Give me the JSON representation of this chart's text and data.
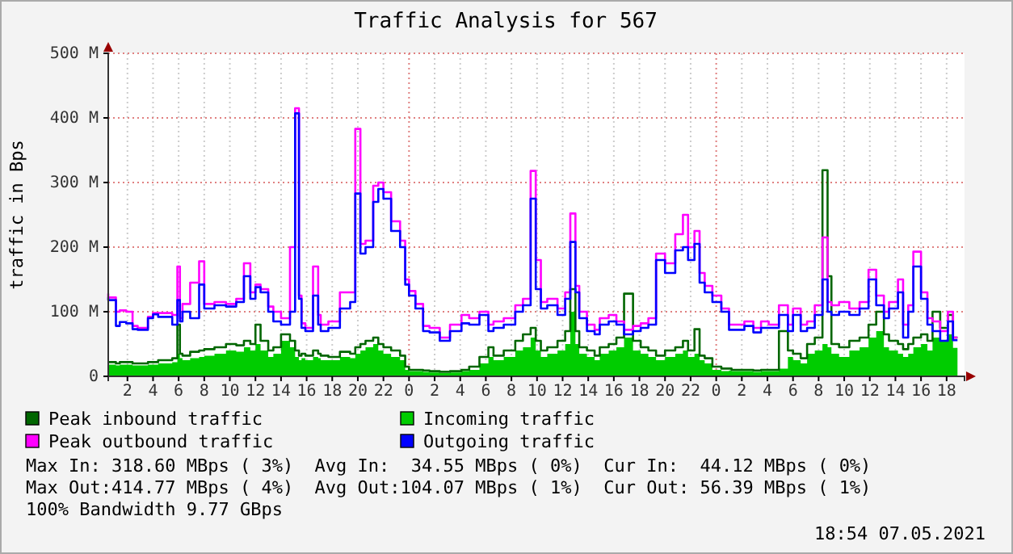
{
  "chart_data": {
    "type": "step",
    "title": "Traffic Analysis for 567",
    "ylabel": "traffic in Bps",
    "x": [
      "2021-05-05T00:30",
      "2021-05-05T01:06",
      "2021-05-05T01:24",
      "2021-05-05T01:54",
      "2021-05-05T02:24",
      "2021-05-05T02:48",
      "2021-05-05T03:36",
      "2021-05-05T04:00",
      "2021-05-05T04:24",
      "2021-05-05T05:30",
      "2021-05-05T05:54",
      "2021-05-05T06:06",
      "2021-05-05T06:18",
      "2021-05-05T06:54",
      "2021-05-05T07:36",
      "2021-05-05T08:00",
      "2021-05-05T08:48",
      "2021-05-05T09:42",
      "2021-05-05T10:30",
      "2021-05-05T11:06",
      "2021-05-05T11:36",
      "2021-05-05T12:00",
      "2021-05-05T12:24",
      "2021-05-05T13:00",
      "2021-05-05T13:24",
      "2021-05-05T14:00",
      "2021-05-05T14:42",
      "2021-05-05T15:06",
      "2021-05-05T15:24",
      "2021-05-05T15:36",
      "2021-05-05T15:54",
      "2021-05-05T16:30",
      "2021-05-05T16:54",
      "2021-05-05T17:06",
      "2021-05-05T17:42",
      "2021-05-05T18:36",
      "2021-05-05T19:24",
      "2021-05-05T19:48",
      "2021-05-05T20:12",
      "2021-05-05T20:36",
      "2021-05-05T21:12",
      "2021-05-05T21:36",
      "2021-05-05T22:00",
      "2021-05-05T22:36",
      "2021-05-05T23:18",
      "2021-05-05T23:42",
      "2021-05-06T00:00",
      "2021-05-06T00:30",
      "2021-05-06T01:06",
      "2021-05-06T01:36",
      "2021-05-06T02:24",
      "2021-05-06T03:12",
      "2021-05-06T04:06",
      "2021-05-06T04:42",
      "2021-05-06T05:30",
      "2021-05-06T06:12",
      "2021-05-06T06:36",
      "2021-05-06T07:24",
      "2021-05-06T08:18",
      "2021-05-06T08:54",
      "2021-05-06T09:30",
      "2021-05-06T09:54",
      "2021-05-06T10:18",
      "2021-05-06T10:48",
      "2021-05-06T11:36",
      "2021-05-06T12:12",
      "2021-05-06T12:36",
      "2021-05-06T13:00",
      "2021-05-06T13:18",
      "2021-05-06T13:54",
      "2021-05-06T14:30",
      "2021-05-06T14:54",
      "2021-05-06T15:36",
      "2021-05-06T16:12",
      "2021-05-06T16:48",
      "2021-05-06T17:30",
      "2021-05-06T18:06",
      "2021-05-06T18:42",
      "2021-05-06T19:18",
      "2021-05-06T20:00",
      "2021-05-06T20:48",
      "2021-05-06T21:24",
      "2021-05-06T21:48",
      "2021-05-06T22:18",
      "2021-05-06T22:42",
      "2021-05-06T23:06",
      "2021-05-06T23:42",
      "2021-05-07T00:24",
      "2021-05-07T01:00",
      "2021-05-07T01:12",
      "2021-05-07T02:12",
      "2021-05-07T02:54",
      "2021-05-07T03:30",
      "2021-05-07T04:06",
      "2021-05-07T04:54",
      "2021-05-07T05:36",
      "2021-05-07T06:00",
      "2021-05-07T06:36",
      "2021-05-07T07:06",
      "2021-05-07T07:42",
      "2021-05-07T08:18",
      "2021-05-07T08:42",
      "2021-05-07T09:00",
      "2021-05-07T09:36",
      "2021-05-07T10:24",
      "2021-05-07T11:12",
      "2021-05-07T11:54",
      "2021-05-07T12:30",
      "2021-05-07T13:06",
      "2021-05-07T13:30",
      "2021-05-07T14:12",
      "2021-05-07T14:36",
      "2021-05-07T15:00",
      "2021-05-07T15:24",
      "2021-05-07T16:00",
      "2021-05-07T16:30",
      "2021-05-07T16:54",
      "2021-05-07T17:30",
      "2021-05-07T18:06",
      "2021-05-07T18:30",
      "2021-05-07T18:51"
    ],
    "series": [
      {
        "name": "Incoming traffic",
        "type": "area",
        "color": "#00cc00",
        "values": [
          18,
          18,
          17,
          18,
          18,
          17,
          17,
          18,
          18,
          20,
          22,
          35,
          28,
          25,
          28,
          30,
          32,
          35,
          40,
          38,
          45,
          40,
          50,
          40,
          30,
          35,
          55,
          45,
          30,
          25,
          28,
          25,
          30,
          28,
          25,
          25,
          30,
          28,
          35,
          40,
          45,
          50,
          40,
          35,
          30,
          25,
          10,
          8,
          8,
          7,
          6,
          5,
          6,
          8,
          10,
          20,
          30,
          25,
          30,
          40,
          45,
          60,
          40,
          30,
          35,
          40,
          50,
          100,
          50,
          35,
          30,
          25,
          35,
          40,
          45,
          60,
          40,
          35,
          30,
          25,
          30,
          35,
          40,
          30,
          35,
          25,
          20,
          10,
          8,
          9,
          8,
          8,
          7,
          8,
          8,
          12,
          30,
          25,
          20,
          35,
          40,
          50,
          45,
          35,
          30,
          40,
          45,
          60,
          70,
          45,
          40,
          35,
          30,
          35,
          45,
          50,
          40,
          60,
          55,
          65,
          44
        ]
      },
      {
        "name": "Peak inbound traffic",
        "color": "#006600",
        "values": [
          22,
          22,
          20,
          22,
          22,
          20,
          20,
          22,
          22,
          25,
          28,
          80,
          35,
          32,
          38,
          40,
          42,
          45,
          50,
          48,
          55,
          50,
          80,
          55,
          40,
          45,
          65,
          55,
          40,
          32,
          35,
          32,
          40,
          35,
          32,
          30,
          38,
          35,
          45,
          50,
          55,
          60,
          50,
          45,
          40,
          32,
          15,
          10,
          10,
          9,
          8,
          7,
          8,
          10,
          15,
          30,
          45,
          32,
          40,
          55,
          65,
          75,
          55,
          40,
          45,
          55,
          70,
          135,
          70,
          45,
          40,
          32,
          45,
          50,
          60,
          128,
          55,
          45,
          40,
          32,
          40,
          45,
          55,
          40,
          73,
          32,
          28,
          15,
          12,
          12,
          10,
          10,
          9,
          10,
          10,
          70,
          40,
          35,
          28,
          50,
          60,
          319,
          155,
          50,
          45,
          55,
          60,
          80,
          100,
          65,
          55,
          50,
          42,
          50,
          60,
          65,
          55,
          100,
          75,
          95,
          60
        ]
      },
      {
        "name": "Peak outbound traffic",
        "color": "#ff00ff",
        "values": [
          128,
          122,
          100,
          102,
          100,
          78,
          75,
          92,
          98,
          98,
          95,
          170,
          90,
          112,
          145,
          178,
          112,
          115,
          112,
          120,
          175,
          130,
          142,
          135,
          108,
          100,
          90,
          200,
          415,
          125,
          82,
          75,
          170,
          95,
          80,
          85,
          130,
          130,
          383,
          205,
          210,
          295,
          300,
          285,
          240,
          210,
          150,
          132,
          112,
          78,
          75,
          60,
          80,
          95,
          90,
          100,
          80,
          85,
          90,
          110,
          120,
          318,
          180,
          115,
          120,
          105,
          130,
          252,
          140,
          100,
          80,
          72,
          90,
          95,
          85,
          72,
          78,
          82,
          90,
          190,
          175,
          220,
          250,
          200,
          225,
          160,
          140,
          125,
          105,
          80,
          80,
          85,
          75,
          85,
          80,
          110,
          80,
          105,
          80,
          85,
          110,
          215,
          115,
          110,
          115,
          105,
          115,
          165,
          125,
          100,
          115,
          150,
          80,
          110,
          193,
          130,
          90,
          85,
          70,
          100,
          60
        ]
      },
      {
        "name": "Outgoing traffic",
        "color": "#0000ff",
        "values": [
          122,
          118,
          78,
          84,
          82,
          73,
          72,
          90,
          96,
          92,
          80,
          118,
          85,
          100,
          90,
          142,
          105,
          110,
          108,
          115,
          155,
          120,
          138,
          130,
          100,
          85,
          80,
          100,
          407,
          120,
          75,
          70,
          125,
          80,
          70,
          75,
          105,
          115,
          283,
          190,
          200,
          270,
          290,
          275,
          225,
          200,
          142,
          125,
          105,
          70,
          68,
          55,
          70,
          82,
          80,
          95,
          70,
          75,
          80,
          100,
          110,
          275,
          135,
          105,
          110,
          95,
          120,
          208,
          130,
          90,
          70,
          65,
          80,
          85,
          80,
          65,
          70,
          75,
          80,
          180,
          160,
          195,
          200,
          180,
          205,
          145,
          130,
          115,
          100,
          72,
          72,
          78,
          68,
          75,
          75,
          95,
          70,
          95,
          70,
          75,
          95,
          150,
          100,
          95,
          100,
          95,
          105,
          150,
          110,
          90,
          105,
          130,
          60,
          100,
          170,
          120,
          80,
          70,
          55,
          85,
          56
        ]
      }
    ],
    "xlim": [
      "2021-05-05T00:30",
      "2021-05-07T19:24"
    ],
    "xticks": [
      {
        "value": "2021-05-05T02:00",
        "label": "2"
      },
      {
        "value": "2021-05-05T04:00",
        "label": "4"
      },
      {
        "value": "2021-05-05T06:00",
        "label": "6"
      },
      {
        "value": "2021-05-05T08:00",
        "label": "8"
      },
      {
        "value": "2021-05-05T10:00",
        "label": "10"
      },
      {
        "value": "2021-05-05T12:00",
        "label": "12"
      },
      {
        "value": "2021-05-05T14:00",
        "label": "14"
      },
      {
        "value": "2021-05-05T16:00",
        "label": "16"
      },
      {
        "value": "2021-05-05T18:00",
        "label": "18"
      },
      {
        "value": "2021-05-05T20:00",
        "label": "20"
      },
      {
        "value": "2021-05-05T22:00",
        "label": "22"
      },
      {
        "value": "2021-05-06T00:00",
        "label": "0"
      },
      {
        "value": "2021-05-06T02:00",
        "label": "2"
      },
      {
        "value": "2021-05-06T04:00",
        "label": "4"
      },
      {
        "value": "2021-05-06T06:00",
        "label": "6"
      },
      {
        "value": "2021-05-06T08:00",
        "label": "8"
      },
      {
        "value": "2021-05-06T10:00",
        "label": "10"
      },
      {
        "value": "2021-05-06T12:00",
        "label": "12"
      },
      {
        "value": "2021-05-06T14:00",
        "label": "14"
      },
      {
        "value": "2021-05-06T16:00",
        "label": "16"
      },
      {
        "value": "2021-05-06T18:00",
        "label": "18"
      },
      {
        "value": "2021-05-06T20:00",
        "label": "20"
      },
      {
        "value": "2021-05-06T22:00",
        "label": "22"
      },
      {
        "value": "2021-05-07T00:00",
        "label": "0"
      },
      {
        "value": "2021-05-07T02:00",
        "label": "2"
      },
      {
        "value": "2021-05-07T04:00",
        "label": "4"
      },
      {
        "value": "2021-05-07T06:00",
        "label": "6"
      },
      {
        "value": "2021-05-07T08:00",
        "label": "8"
      },
      {
        "value": "2021-05-07T10:00",
        "label": "10"
      },
      {
        "value": "2021-05-07T12:00",
        "label": "12"
      },
      {
        "value": "2021-05-07T14:00",
        "label": "14"
      },
      {
        "value": "2021-05-07T16:00",
        "label": "16"
      },
      {
        "value": "2021-05-07T18:00",
        "label": "18"
      }
    ],
    "ylim": [
      0,
      500
    ],
    "yticks": [
      0,
      {
        "value": 100,
        "label": "100 M"
      },
      {
        "value": 200,
        "label": "200 M"
      },
      {
        "value": 300,
        "label": "300 M"
      },
      {
        "value": 400,
        "label": "400 M"
      },
      {
        "value": 500,
        "label": "500 M"
      }
    ],
    "grid": true,
    "legend": "bottom",
    "annotations": [
      "Max In: 318.60 MBps ( 3%)  Avg In:  34.55 MBps ( 0%)  Cur In:  44.12 MBps ( 0%)",
      "Max Out:414.77 MBps ( 4%)  Avg Out:104.07 MBps ( 1%)  Cur Out: 56.39 MBps ( 1%)",
      "100% Bandwidth 9.77 GBps",
      "18:54 07.05.2021"
    ]
  }
}
